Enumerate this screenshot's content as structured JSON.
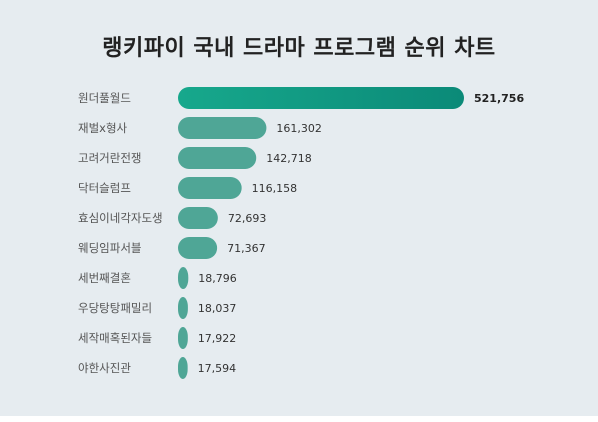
{
  "chart_data": {
    "type": "bar",
    "orientation": "horizontal",
    "title": "랭키파이 국내 드라마 프로그램 순위 차트",
    "categories": [
      "원더풀월드",
      "재벌x형사",
      "고려거란전쟁",
      "닥터슬럼프",
      "효심이네각자도생",
      "웨딩임파서블",
      "세번째결혼",
      "우당탕탕패밀리",
      "세작매혹된자들",
      "야한사진관"
    ],
    "values": [
      521756,
      161302,
      142718,
      116158,
      72693,
      71367,
      18796,
      18037,
      17922,
      17594
    ],
    "value_labels": [
      "521,756",
      "161,302",
      "142,718",
      "116,158",
      "72,693",
      "71,367",
      "18,796",
      "18,037",
      "17,922",
      "17,594"
    ],
    "xlim": [
      0,
      521756
    ],
    "grid": false,
    "legend": "none",
    "colors": {
      "top_bar_start": "#17a88c",
      "top_bar_end": "#0b8a78",
      "bar": "#4fa696"
    }
  }
}
